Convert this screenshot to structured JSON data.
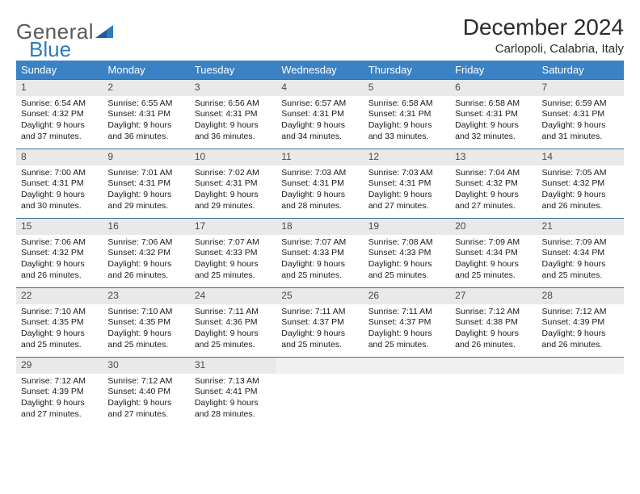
{
  "brand": {
    "name1": "General",
    "name2": "Blue"
  },
  "title": "December 2024",
  "location": "Carlopoli, Calabria, Italy",
  "colors": {
    "header_bg": "#3b82c4",
    "header_text": "#ffffff",
    "daynum_bg": "#e9e9e9",
    "row_border": "#3b6fa0",
    "logo_gray": "#5a5a5a",
    "logo_blue": "#2b7bbf"
  },
  "weekdays": [
    "Sunday",
    "Monday",
    "Tuesday",
    "Wednesday",
    "Thursday",
    "Friday",
    "Saturday"
  ],
  "weeks": [
    [
      {
        "n": "1",
        "sr": "Sunrise: 6:54 AM",
        "ss": "Sunset: 4:32 PM",
        "d1": "Daylight: 9 hours",
        "d2": "and 37 minutes."
      },
      {
        "n": "2",
        "sr": "Sunrise: 6:55 AM",
        "ss": "Sunset: 4:31 PM",
        "d1": "Daylight: 9 hours",
        "d2": "and 36 minutes."
      },
      {
        "n": "3",
        "sr": "Sunrise: 6:56 AM",
        "ss": "Sunset: 4:31 PM",
        "d1": "Daylight: 9 hours",
        "d2": "and 36 minutes."
      },
      {
        "n": "4",
        "sr": "Sunrise: 6:57 AM",
        "ss": "Sunset: 4:31 PM",
        "d1": "Daylight: 9 hours",
        "d2": "and 34 minutes."
      },
      {
        "n": "5",
        "sr": "Sunrise: 6:58 AM",
        "ss": "Sunset: 4:31 PM",
        "d1": "Daylight: 9 hours",
        "d2": "and 33 minutes."
      },
      {
        "n": "6",
        "sr": "Sunrise: 6:58 AM",
        "ss": "Sunset: 4:31 PM",
        "d1": "Daylight: 9 hours",
        "d2": "and 32 minutes."
      },
      {
        "n": "7",
        "sr": "Sunrise: 6:59 AM",
        "ss": "Sunset: 4:31 PM",
        "d1": "Daylight: 9 hours",
        "d2": "and 31 minutes."
      }
    ],
    [
      {
        "n": "8",
        "sr": "Sunrise: 7:00 AM",
        "ss": "Sunset: 4:31 PM",
        "d1": "Daylight: 9 hours",
        "d2": "and 30 minutes."
      },
      {
        "n": "9",
        "sr": "Sunrise: 7:01 AM",
        "ss": "Sunset: 4:31 PM",
        "d1": "Daylight: 9 hours",
        "d2": "and 29 minutes."
      },
      {
        "n": "10",
        "sr": "Sunrise: 7:02 AM",
        "ss": "Sunset: 4:31 PM",
        "d1": "Daylight: 9 hours",
        "d2": "and 29 minutes."
      },
      {
        "n": "11",
        "sr": "Sunrise: 7:03 AM",
        "ss": "Sunset: 4:31 PM",
        "d1": "Daylight: 9 hours",
        "d2": "and 28 minutes."
      },
      {
        "n": "12",
        "sr": "Sunrise: 7:03 AM",
        "ss": "Sunset: 4:31 PM",
        "d1": "Daylight: 9 hours",
        "d2": "and 27 minutes."
      },
      {
        "n": "13",
        "sr": "Sunrise: 7:04 AM",
        "ss": "Sunset: 4:32 PM",
        "d1": "Daylight: 9 hours",
        "d2": "and 27 minutes."
      },
      {
        "n": "14",
        "sr": "Sunrise: 7:05 AM",
        "ss": "Sunset: 4:32 PM",
        "d1": "Daylight: 9 hours",
        "d2": "and 26 minutes."
      }
    ],
    [
      {
        "n": "15",
        "sr": "Sunrise: 7:06 AM",
        "ss": "Sunset: 4:32 PM",
        "d1": "Daylight: 9 hours",
        "d2": "and 26 minutes."
      },
      {
        "n": "16",
        "sr": "Sunrise: 7:06 AM",
        "ss": "Sunset: 4:32 PM",
        "d1": "Daylight: 9 hours",
        "d2": "and 26 minutes."
      },
      {
        "n": "17",
        "sr": "Sunrise: 7:07 AM",
        "ss": "Sunset: 4:33 PM",
        "d1": "Daylight: 9 hours",
        "d2": "and 25 minutes."
      },
      {
        "n": "18",
        "sr": "Sunrise: 7:07 AM",
        "ss": "Sunset: 4:33 PM",
        "d1": "Daylight: 9 hours",
        "d2": "and 25 minutes."
      },
      {
        "n": "19",
        "sr": "Sunrise: 7:08 AM",
        "ss": "Sunset: 4:33 PM",
        "d1": "Daylight: 9 hours",
        "d2": "and 25 minutes."
      },
      {
        "n": "20",
        "sr": "Sunrise: 7:09 AM",
        "ss": "Sunset: 4:34 PM",
        "d1": "Daylight: 9 hours",
        "d2": "and 25 minutes."
      },
      {
        "n": "21",
        "sr": "Sunrise: 7:09 AM",
        "ss": "Sunset: 4:34 PM",
        "d1": "Daylight: 9 hours",
        "d2": "and 25 minutes."
      }
    ],
    [
      {
        "n": "22",
        "sr": "Sunrise: 7:10 AM",
        "ss": "Sunset: 4:35 PM",
        "d1": "Daylight: 9 hours",
        "d2": "and 25 minutes."
      },
      {
        "n": "23",
        "sr": "Sunrise: 7:10 AM",
        "ss": "Sunset: 4:35 PM",
        "d1": "Daylight: 9 hours",
        "d2": "and 25 minutes."
      },
      {
        "n": "24",
        "sr": "Sunrise: 7:11 AM",
        "ss": "Sunset: 4:36 PM",
        "d1": "Daylight: 9 hours",
        "d2": "and 25 minutes."
      },
      {
        "n": "25",
        "sr": "Sunrise: 7:11 AM",
        "ss": "Sunset: 4:37 PM",
        "d1": "Daylight: 9 hours",
        "d2": "and 25 minutes."
      },
      {
        "n": "26",
        "sr": "Sunrise: 7:11 AM",
        "ss": "Sunset: 4:37 PM",
        "d1": "Daylight: 9 hours",
        "d2": "and 25 minutes."
      },
      {
        "n": "27",
        "sr": "Sunrise: 7:12 AM",
        "ss": "Sunset: 4:38 PM",
        "d1": "Daylight: 9 hours",
        "d2": "and 26 minutes."
      },
      {
        "n": "28",
        "sr": "Sunrise: 7:12 AM",
        "ss": "Sunset: 4:39 PM",
        "d1": "Daylight: 9 hours",
        "d2": "and 26 minutes."
      }
    ],
    [
      {
        "n": "29",
        "sr": "Sunrise: 7:12 AM",
        "ss": "Sunset: 4:39 PM",
        "d1": "Daylight: 9 hours",
        "d2": "and 27 minutes."
      },
      {
        "n": "30",
        "sr": "Sunrise: 7:12 AM",
        "ss": "Sunset: 4:40 PM",
        "d1": "Daylight: 9 hours",
        "d2": "and 27 minutes."
      },
      {
        "n": "31",
        "sr": "Sunrise: 7:13 AM",
        "ss": "Sunset: 4:41 PM",
        "d1": "Daylight: 9 hours",
        "d2": "and 28 minutes."
      },
      null,
      null,
      null,
      null
    ]
  ]
}
